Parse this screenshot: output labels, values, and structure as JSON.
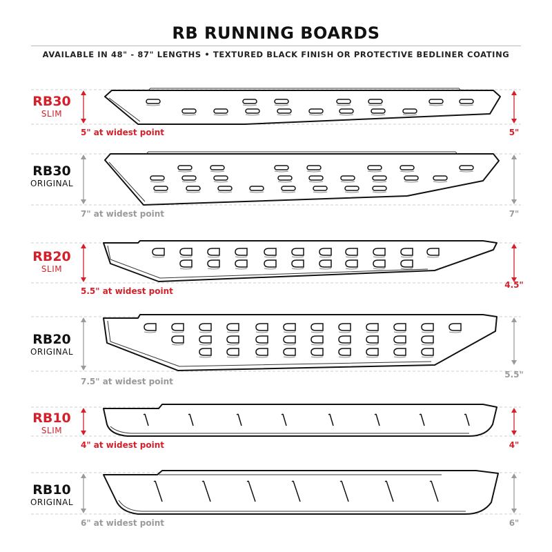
{
  "header": {
    "title": "RB RUNNING BOARDS",
    "subtitle": "AVAILABLE IN 48\" - 87\" LENGTHS  •  TEXTURED BLACK FINISH OR PROTECTIVE BEDLINER COATING"
  },
  "colors": {
    "slim": "#d4202a",
    "original": "#111111",
    "dimension_grey": "#9a9a9a"
  },
  "boards": [
    {
      "model": "RB30",
      "variant": "SLIM",
      "widest": "5\" at widest point",
      "right": "5\"",
      "highlight": true
    },
    {
      "model": "RB30",
      "variant": "ORIGINAL",
      "widest": "7\" at widest point",
      "right": "7\"",
      "highlight": false
    },
    {
      "model": "RB20",
      "variant": "SLIM",
      "widest": "5.5\" at widest point",
      "right": "4.5\"",
      "highlight": true
    },
    {
      "model": "RB20",
      "variant": "ORIGINAL",
      "widest": "7.5\" at widest point",
      "right": "5.5\"",
      "highlight": false
    },
    {
      "model": "RB10",
      "variant": "SLIM",
      "widest": "4\" at widest point",
      "right": "4\"",
      "highlight": true
    },
    {
      "model": "RB10",
      "variant": "ORIGINAL",
      "widest": "6\" at widest point",
      "right": "6\"",
      "highlight": false
    }
  ]
}
